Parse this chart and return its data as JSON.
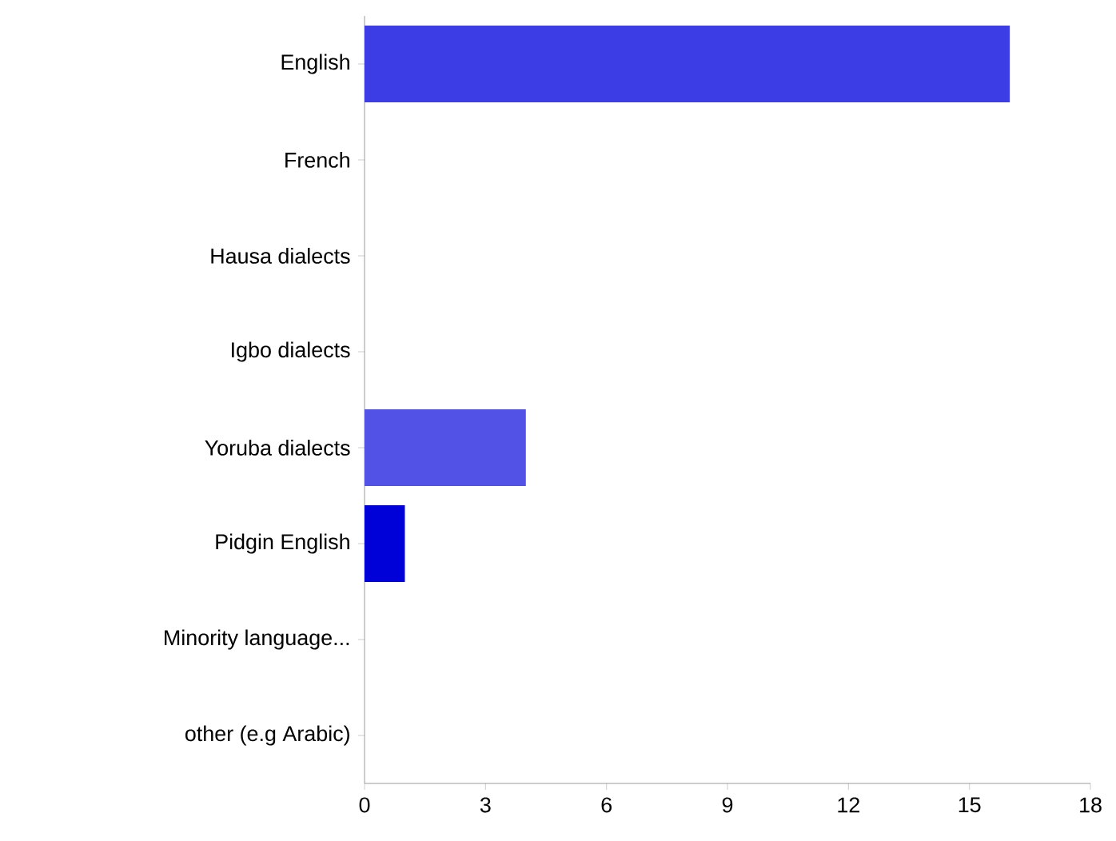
{
  "chart_data": {
    "type": "bar",
    "orientation": "horizontal",
    "categories": [
      "English",
      "French",
      "Hausa dialects",
      "Igbo dialects",
      "Yoruba dialects",
      "Pidgin English",
      "Minority language...",
      "other (e.g Arabic)"
    ],
    "values": [
      16,
      0,
      0,
      0,
      4,
      1,
      0,
      0
    ],
    "colors": [
      "#3d3de6",
      "#3d3de6",
      "#3d3de6",
      "#3d3de6",
      "#5252e6",
      "#0000d8",
      "#3d3de6",
      "#3d3de6"
    ],
    "xlim": [
      0,
      18
    ],
    "xticks": [
      0,
      3,
      6,
      9,
      12,
      15,
      18
    ]
  }
}
